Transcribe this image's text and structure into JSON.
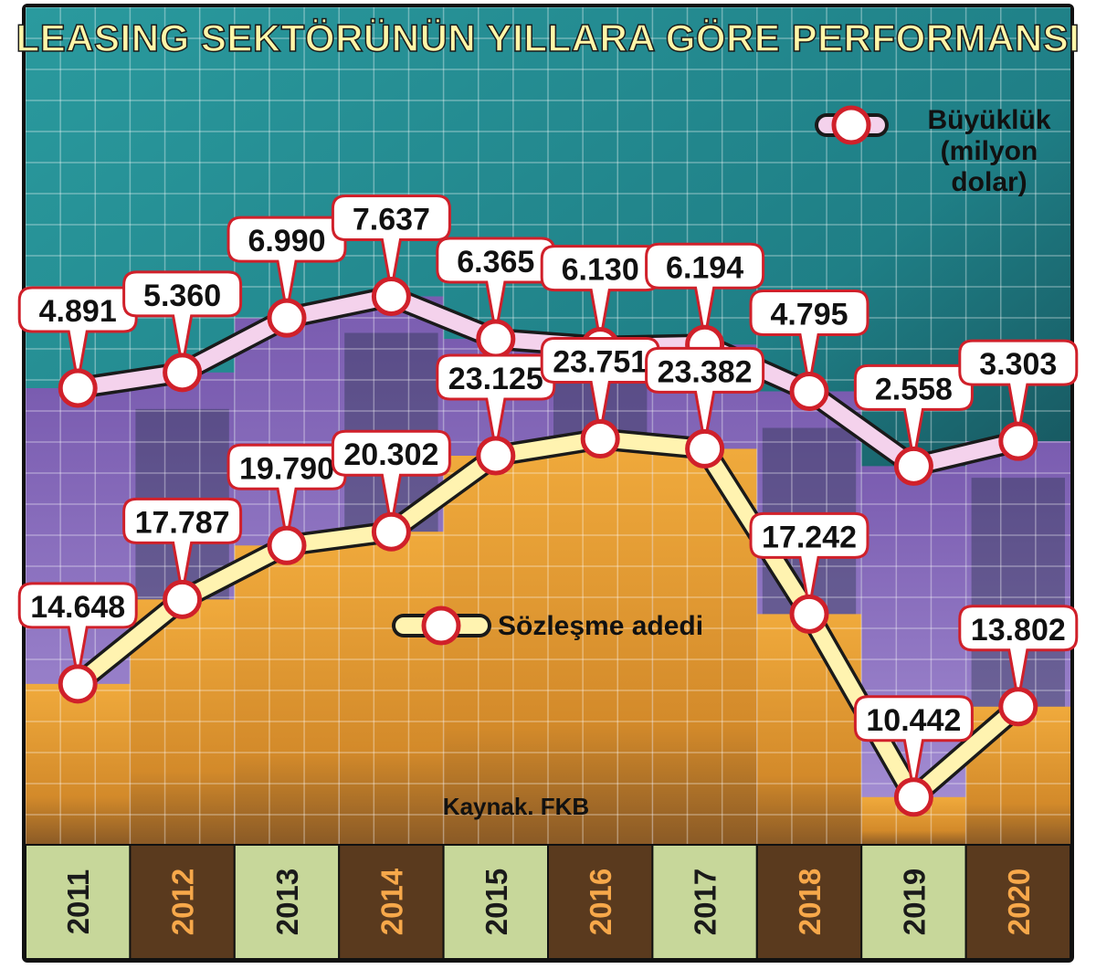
{
  "title": "LEASING SEKTÖRÜNÜN YILLARA GÖRE PERFORMANSI",
  "source": "Kaynak. FKB",
  "colors": {
    "background_top": "#1f7f86",
    "background_dark": "#1a2a3a",
    "purple_band": "#8a6ec0",
    "orange_band": "#e8a23a",
    "line_size": "#f4d2ec",
    "line_count": "#fff3b0",
    "marker_ring": "#d0202a",
    "year_light_bg": "#c7d79a",
    "year_dark_bg": "#5a3a1e",
    "year_light_text": "#1a1a1a",
    "year_dark_text": "#f7a84a"
  },
  "chart_data": {
    "type": "line",
    "title": "LEASING SEKTÖRÜNÜN YILLARA GÖRE PERFORMANSI",
    "categories": [
      "2011",
      "2012",
      "2013",
      "2014",
      "2015",
      "2016",
      "2017",
      "2018",
      "2019",
      "2020"
    ],
    "series": [
      {
        "name": "Büyüklük (milyon dolar)",
        "values": [
          4891,
          5360,
          6990,
          7637,
          6365,
          6130,
          6194,
          4795,
          2558,
          3303
        ],
        "labels": [
          "4.891",
          "5.360",
          "6.990",
          "7.637",
          "6.365",
          "6.130",
          "6.194",
          "4.795",
          "2.558",
          "3.303"
        ]
      },
      {
        "name": "Sözleşme adedi",
        "values": [
          14648,
          17787,
          19790,
          20302,
          23125,
          23751,
          23382,
          17242,
          10442,
          13802
        ],
        "labels": [
          "14.648",
          "17.787",
          "19.790",
          "20.302",
          "23.125",
          "23.751",
          "23.382",
          "17.242",
          "10.442",
          "13.802"
        ]
      }
    ],
    "legend": [
      {
        "lines": [
          "Büyüklük",
          "(milyon",
          "dolar)"
        ]
      },
      {
        "lines": [
          "Sözleşme adedi"
        ]
      }
    ],
    "xlabel": "",
    "ylabel": "",
    "grid": true
  }
}
